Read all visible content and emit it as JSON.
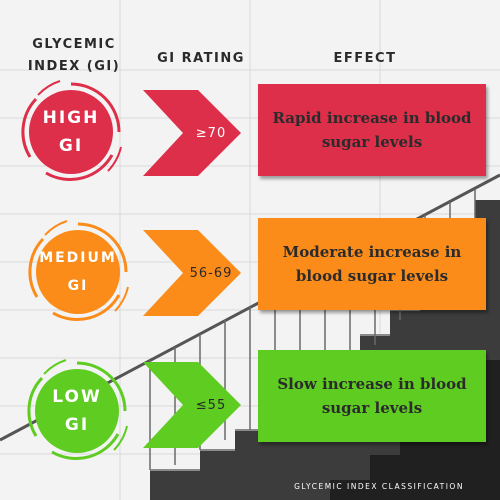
{
  "headers": {
    "gi": [
      "GLYCEMIC",
      "INDEX (GI)"
    ],
    "rating": "GI RATING",
    "effect": "EFFECT"
  },
  "rows": [
    {
      "circle": [
        "HIGH",
        "GI"
      ],
      "rating": "≥70",
      "effect": "Rapid increase in blood sugar levels",
      "color": "#dd2e4a"
    },
    {
      "circle": [
        "MEDIUM",
        "GI"
      ],
      "rating": "56-69",
      "effect": "Moderate increase in blood sugar levels",
      "color": "#fb8c1a"
    },
    {
      "circle": [
        "LOW",
        "GI"
      ],
      "rating": "≤55",
      "effect": "Slow increase in blood sugar levels",
      "color": "#5ecc21"
    }
  ],
  "footer": "GLYCEMIC INDEX CLASSIFICATION"
}
